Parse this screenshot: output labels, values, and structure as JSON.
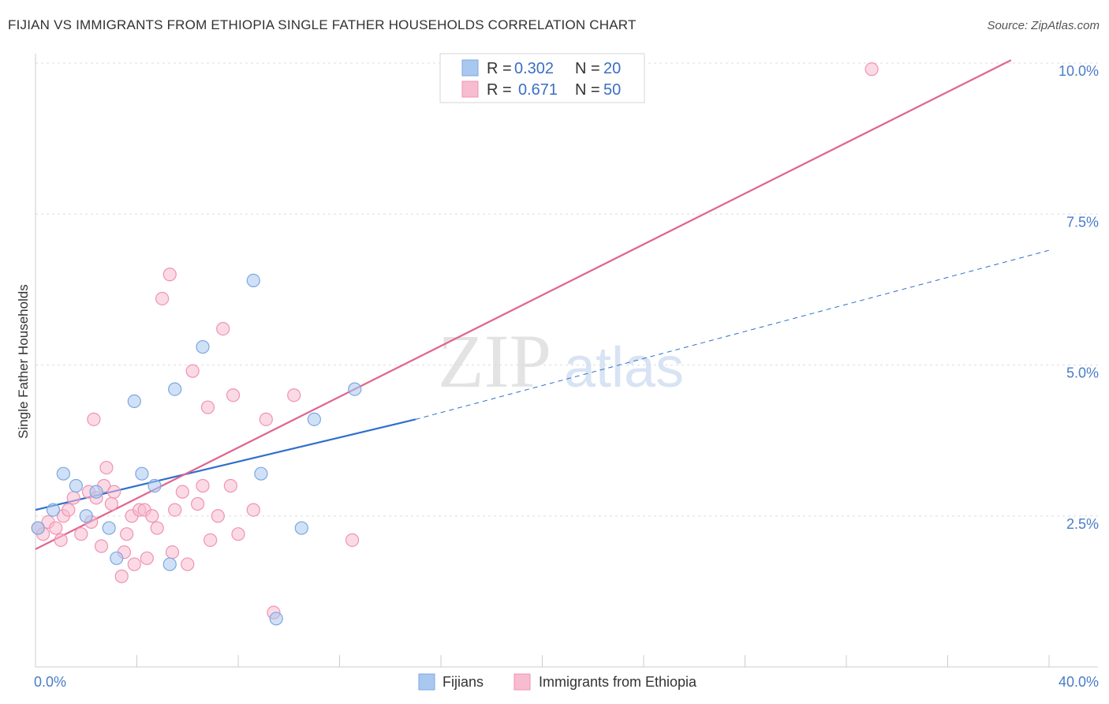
{
  "title": "FIJIAN VS IMMIGRANTS FROM ETHIOPIA SINGLE FATHER HOUSEHOLDS CORRELATION CHART",
  "source": "Source: ZipAtlas.com",
  "watermark": {
    "zip": "ZIP",
    "atlas": "atlas"
  },
  "colors": {
    "fijian_fill": "#a9c8f0",
    "fijian_stroke": "#7ba7e0",
    "fijian_line": "#2f6fcc",
    "ethiopia_fill": "#f7bcd0",
    "ethiopia_stroke": "#ef93b2",
    "ethiopia_line": "#e0648f",
    "tick": "#4a7cc7",
    "grid": "#dddddd"
  },
  "legend": {
    "rows": [
      {
        "r_label": "R =",
        "r_value": "0.302",
        "n_label": "N =",
        "n_value": "20"
      },
      {
        "r_label": "R =",
        "r_value": "0.671",
        "n_label": "N =",
        "n_value": "50"
      }
    ]
  },
  "chart_data": {
    "type": "scatter",
    "xlabel": "",
    "ylabel": "Single Father Households",
    "xlim": [
      0,
      40
    ],
    "ylim": [
      0,
      10
    ],
    "x_tick_labels": [
      "0.0%",
      "40.0%"
    ],
    "y_ticks": [
      {
        "value": 2.5,
        "label": "2.5%"
      },
      {
        "value": 5.0,
        "label": "5.0%"
      },
      {
        "value": 7.5,
        "label": "7.5%"
      },
      {
        "value": 10.0,
        "label": "10.0%"
      }
    ],
    "grid": true,
    "legend_position": "bottom-center",
    "series": [
      {
        "name": "Fijians",
        "points": [
          [
            0.1,
            2.3
          ],
          [
            0.7,
            2.6
          ],
          [
            1.1,
            3.2
          ],
          [
            1.6,
            3.0
          ],
          [
            2.0,
            2.5
          ],
          [
            2.4,
            2.9
          ],
          [
            2.9,
            2.3
          ],
          [
            3.2,
            1.8
          ],
          [
            3.9,
            4.4
          ],
          [
            4.2,
            3.2
          ],
          [
            4.7,
            3.0
          ],
          [
            5.3,
            1.7
          ],
          [
            5.5,
            4.6
          ],
          [
            6.6,
            5.3
          ],
          [
            8.6,
            6.4
          ],
          [
            8.9,
            3.2
          ],
          [
            9.5,
            0.8
          ],
          [
            10.5,
            2.3
          ],
          [
            11.0,
            4.1
          ],
          [
            12.6,
            4.6
          ]
        ],
        "trend": {
          "x_start": 0,
          "y_start": 2.6,
          "x_solid_end": 15.0,
          "y_solid_end": 4.1,
          "x_dash_end": 40,
          "y_dash_end": 6.9
        }
      },
      {
        "name": "Immigrants from Ethiopia",
        "points": [
          [
            0.1,
            2.3
          ],
          [
            0.3,
            2.2
          ],
          [
            0.5,
            2.4
          ],
          [
            0.8,
            2.3
          ],
          [
            1.0,
            2.1
          ],
          [
            1.1,
            2.5
          ],
          [
            1.3,
            2.6
          ],
          [
            1.5,
            2.8
          ],
          [
            1.8,
            2.2
          ],
          [
            2.1,
            2.9
          ],
          [
            2.2,
            2.4
          ],
          [
            2.3,
            4.1
          ],
          [
            2.4,
            2.8
          ],
          [
            2.6,
            2.0
          ],
          [
            2.7,
            3.0
          ],
          [
            2.8,
            3.3
          ],
          [
            3.0,
            2.7
          ],
          [
            3.1,
            2.9
          ],
          [
            3.4,
            1.5
          ],
          [
            3.5,
            1.9
          ],
          [
            3.6,
            2.2
          ],
          [
            3.8,
            2.5
          ],
          [
            3.9,
            1.7
          ],
          [
            4.1,
            2.6
          ],
          [
            4.3,
            2.6
          ],
          [
            4.4,
            1.8
          ],
          [
            4.6,
            2.5
          ],
          [
            4.8,
            2.3
          ],
          [
            5.0,
            6.1
          ],
          [
            5.3,
            6.5
          ],
          [
            5.4,
            1.9
          ],
          [
            5.5,
            2.6
          ],
          [
            5.8,
            2.9
          ],
          [
            6.0,
            1.7
          ],
          [
            6.2,
            4.9
          ],
          [
            6.4,
            2.7
          ],
          [
            6.6,
            3.0
          ],
          [
            6.8,
            4.3
          ],
          [
            6.9,
            2.1
          ],
          [
            7.2,
            2.5
          ],
          [
            7.4,
            5.6
          ],
          [
            7.7,
            3.0
          ],
          [
            7.8,
            4.5
          ],
          [
            8.0,
            2.2
          ],
          [
            8.6,
            2.6
          ],
          [
            9.1,
            4.1
          ],
          [
            9.4,
            0.9
          ],
          [
            10.2,
            4.5
          ],
          [
            12.5,
            2.1
          ],
          [
            33.0,
            9.9
          ]
        ],
        "trend": {
          "x_start": 0,
          "y_start": 1.95,
          "x_end": 38.5,
          "y_end": 10.05
        }
      }
    ]
  }
}
